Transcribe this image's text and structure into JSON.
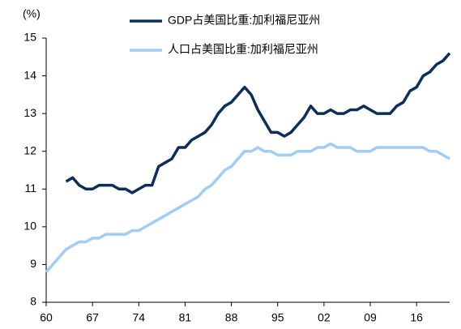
{
  "chart_data": {
    "type": "line",
    "y_label": "(%)",
    "x": [
      1960,
      1961,
      1962,
      1963,
      1964,
      1965,
      1966,
      1967,
      1968,
      1969,
      1970,
      1971,
      1972,
      1973,
      1974,
      1975,
      1976,
      1977,
      1978,
      1979,
      1980,
      1981,
      1982,
      1983,
      1984,
      1985,
      1986,
      1987,
      1988,
      1989,
      1990,
      1991,
      1992,
      1993,
      1994,
      1995,
      1996,
      1997,
      1998,
      1999,
      2000,
      2001,
      2002,
      2003,
      2004,
      2005,
      2006,
      2007,
      2008,
      2009,
      2010,
      2011,
      2012,
      2013,
      2014,
      2015,
      2016,
      2017,
      2018,
      2019,
      2020,
      2021
    ],
    "series": [
      {
        "name": "GDP占美国比重:加利福尼亚州",
        "color": "#0d2d5a",
        "values": [
          null,
          null,
          null,
          11.2,
          11.3,
          11.1,
          11.0,
          11.0,
          11.1,
          11.1,
          11.1,
          11.0,
          11.0,
          10.9,
          11.0,
          11.1,
          11.1,
          11.6,
          11.7,
          11.8,
          12.1,
          12.1,
          12.3,
          12.4,
          12.5,
          12.7,
          13.0,
          13.2,
          13.3,
          13.5,
          13.7,
          13.5,
          13.1,
          12.8,
          12.5,
          12.5,
          12.4,
          12.5,
          12.7,
          12.9,
          13.2,
          13.0,
          13.0,
          13.1,
          13.0,
          13.0,
          13.1,
          13.1,
          13.2,
          13.1,
          13.0,
          13.0,
          13.0,
          13.2,
          13.3,
          13.6,
          13.7,
          14.0,
          14.1,
          14.3,
          14.4,
          14.6
        ]
      },
      {
        "name": "人口占美国比重:加利福尼亚州",
        "color": "#9fcdf5",
        "values": [
          8.8,
          9.0,
          9.2,
          9.4,
          9.5,
          9.6,
          9.6,
          9.7,
          9.7,
          9.8,
          9.8,
          9.8,
          9.8,
          9.9,
          9.9,
          10.0,
          10.1,
          10.2,
          10.3,
          10.4,
          10.5,
          10.6,
          10.7,
          10.8,
          11.0,
          11.1,
          11.3,
          11.5,
          11.6,
          11.8,
          12.0,
          12.0,
          12.1,
          12.0,
          12.0,
          11.9,
          11.9,
          11.9,
          12.0,
          12.0,
          12.0,
          12.1,
          12.1,
          12.2,
          12.1,
          12.1,
          12.1,
          12.0,
          12.0,
          12.0,
          12.1,
          12.1,
          12.1,
          12.1,
          12.1,
          12.1,
          12.1,
          12.1,
          12.0,
          12.0,
          11.9,
          11.8
        ]
      }
    ],
    "xlim": [
      1960,
      2021
    ],
    "xticks": [
      {
        "value": 1960,
        "label": "60"
      },
      {
        "value": 1967,
        "label": "67"
      },
      {
        "value": 1974,
        "label": "74"
      },
      {
        "value": 1981,
        "label": "81"
      },
      {
        "value": 1988,
        "label": "88"
      },
      {
        "value": 1995,
        "label": "95"
      },
      {
        "value": 2002,
        "label": "02"
      },
      {
        "value": 2009,
        "label": "09"
      },
      {
        "value": 2016,
        "label": "16"
      }
    ],
    "ylim": [
      8,
      15
    ],
    "yticks": [
      8,
      9,
      10,
      11,
      12,
      13,
      14,
      15
    ],
    "grid": false
  }
}
